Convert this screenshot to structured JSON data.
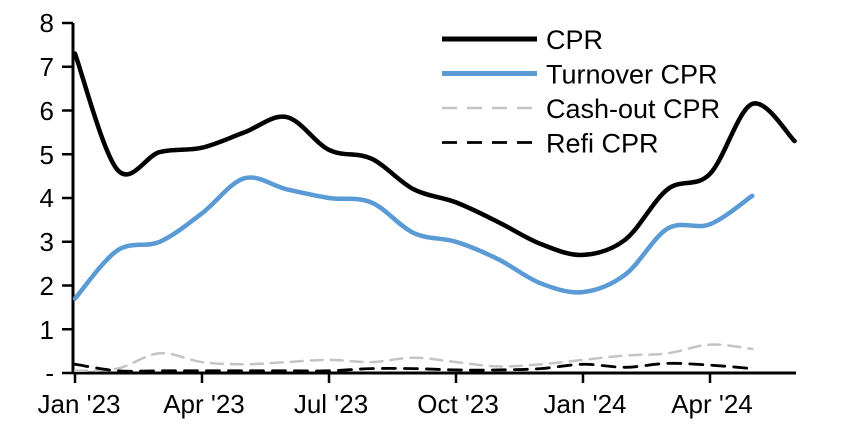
{
  "chart_data": {
    "type": "line",
    "title": "",
    "xlabel": "",
    "ylabel": "",
    "ylim": [
      0,
      8
    ],
    "grid": false,
    "legend_position": "top-right",
    "y_ticks": [
      "8",
      "7",
      "6",
      "5",
      "4",
      "3",
      "2",
      "1",
      "-"
    ],
    "x_labels": [
      "Jan '23",
      "Apr '23",
      "Jul '23",
      "Oct '23",
      "Jan '24",
      "Apr '24"
    ],
    "months": [
      "Jan '23",
      "Feb '23",
      "Mar '23",
      "Apr '23",
      "May '23",
      "Jun '23",
      "Jul '23",
      "Aug '23",
      "Sep '23",
      "Oct '23",
      "Nov '23",
      "Dec '23",
      "Jan '24",
      "Feb '24",
      "Mar '24",
      "Apr '24",
      "May '24",
      "Jun '24"
    ],
    "series": [
      {
        "name": "CPR",
        "color": "#000000",
        "dash": null,
        "width": 4.5,
        "values": [
          7.3,
          4.65,
          5.05,
          5.15,
          5.5,
          5.85,
          5.1,
          4.9,
          4.2,
          3.9,
          3.45,
          2.95,
          2.7,
          3.05,
          4.2,
          4.55,
          6.15,
          5.3
        ]
      },
      {
        "name": "Turnover CPR",
        "color": "#5B9BD5",
        "dash": null,
        "width": 4.5,
        "values": [
          1.7,
          2.8,
          3.0,
          3.65,
          4.45,
          4.2,
          4.0,
          3.9,
          3.2,
          3.0,
          2.6,
          2.05,
          1.85,
          2.25,
          3.3,
          3.4,
          4.05
        ]
      },
      {
        "name": "Cash-out CPR",
        "color": "#C4C4C4",
        "dash": "12 8",
        "width": 2.5,
        "values": [
          0.05,
          0.1,
          0.45,
          0.25,
          0.2,
          0.25,
          0.3,
          0.25,
          0.35,
          0.25,
          0.15,
          0.2,
          0.3,
          0.4,
          0.45,
          0.65,
          0.55
        ]
      },
      {
        "name": "Refi CPR",
        "color": "#000000",
        "dash": "13 9",
        "width": 2.8,
        "values": [
          0.2,
          0.05,
          0.05,
          0.05,
          0.05,
          0.05,
          0.05,
          0.1,
          0.1,
          0.07,
          0.07,
          0.1,
          0.2,
          0.13,
          0.22,
          0.18,
          0.1
        ]
      }
    ]
  }
}
